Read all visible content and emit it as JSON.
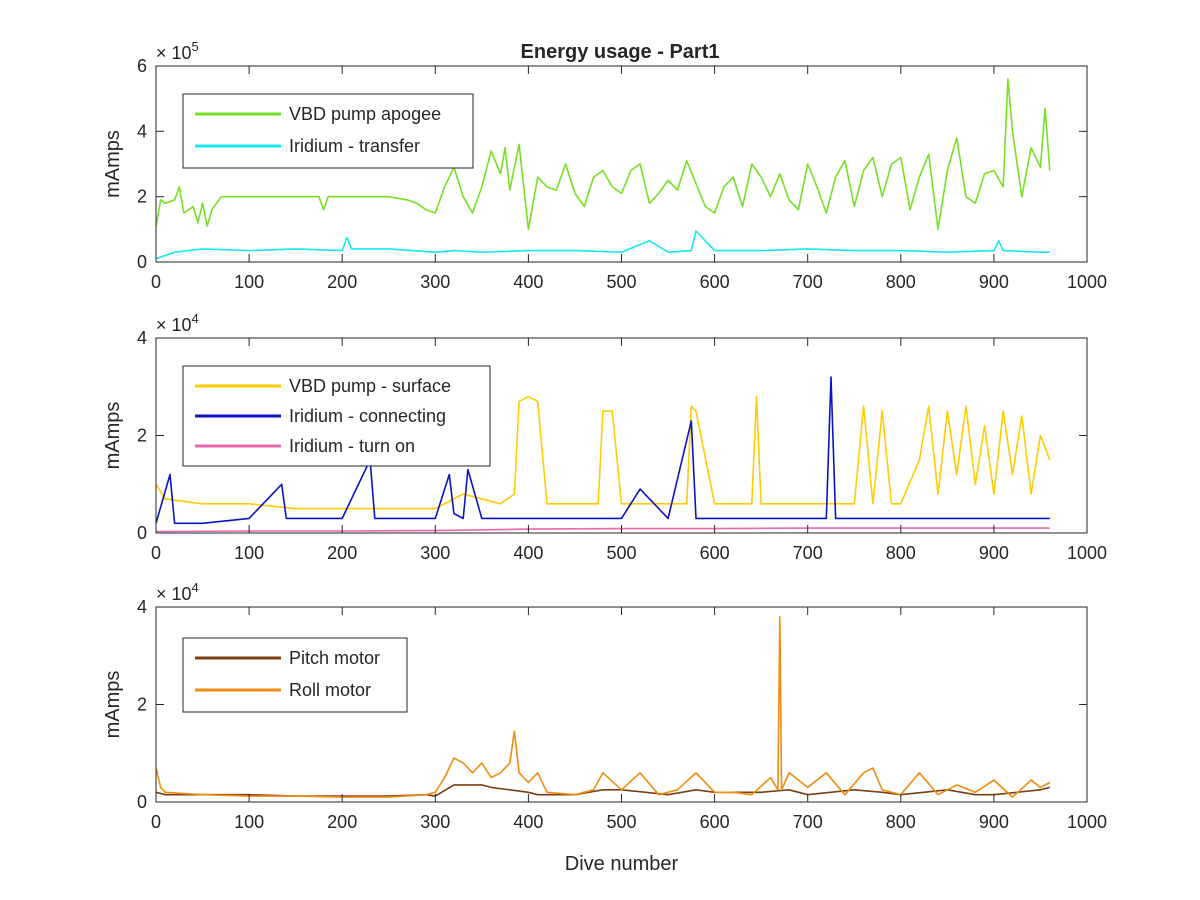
{
  "figure": {
    "title": "Energy usage - Part1"
  },
  "chart_data": [
    {
      "type": "line",
      "title": "Energy usage - Part1",
      "xlabel": "",
      "ylabel": "mAmps",
      "xlim": [
        0,
        1000
      ],
      "ylim": [
        0,
        600000
      ],
      "xticks": [
        0,
        100,
        200,
        300,
        400,
        500,
        600,
        700,
        800,
        900,
        1000
      ],
      "yticks": [
        0,
        200000,
        400000,
        600000
      ],
      "ytick_labels": [
        "0",
        "2",
        "4",
        "6"
      ],
      "y_exponent": "× 10^5",
      "y_exponent_base": "× 10",
      "y_exponent_power": "5",
      "legend_position": "top-left",
      "grid": false,
      "series": [
        {
          "name": "VBD pump apogee",
          "color": "#77e024",
          "x": [
            0,
            5,
            10,
            20,
            25,
            30,
            40,
            45,
            50,
            55,
            60,
            70,
            80,
            100,
            150,
            175,
            180,
            185,
            200,
            250,
            270,
            280,
            290,
            300,
            310,
            320,
            330,
            340,
            350,
            360,
            370,
            375,
            380,
            390,
            400,
            410,
            420,
            430,
            440,
            450,
            460,
            470,
            480,
            490,
            500,
            510,
            520,
            530,
            540,
            550,
            560,
            570,
            580,
            590,
            600,
            610,
            620,
            630,
            640,
            650,
            660,
            670,
            680,
            690,
            700,
            710,
            720,
            730,
            740,
            750,
            760,
            770,
            780,
            790,
            800,
            810,
            820,
            830,
            840,
            850,
            860,
            870,
            880,
            890,
            900,
            910,
            915,
            920,
            930,
            940,
            950,
            955,
            960
          ],
          "y": [
            110000,
            190000,
            180000,
            190000,
            230000,
            150000,
            170000,
            120000,
            180000,
            110000,
            160000,
            200000,
            200000,
            200000,
            200000,
            200000,
            160000,
            200000,
            200000,
            200000,
            190000,
            180000,
            160000,
            150000,
            230000,
            290000,
            200000,
            150000,
            230000,
            340000,
            270000,
            350000,
            220000,
            360000,
            100000,
            260000,
            230000,
            220000,
            300000,
            210000,
            170000,
            260000,
            280000,
            230000,
            210000,
            280000,
            300000,
            180000,
            210000,
            250000,
            220000,
            310000,
            240000,
            170000,
            150000,
            230000,
            260000,
            170000,
            300000,
            260000,
            200000,
            270000,
            190000,
            160000,
            300000,
            230000,
            150000,
            260000,
            310000,
            170000,
            280000,
            320000,
            200000,
            300000,
            320000,
            160000,
            260000,
            330000,
            100000,
            280000,
            380000,
            200000,
            180000,
            270000,
            280000,
            230000,
            560000,
            400000,
            200000,
            350000,
            290000,
            470000,
            280000
          ]
        },
        {
          "name": "Iridium - transfer",
          "color": "#18e8f0",
          "x": [
            0,
            20,
            50,
            100,
            150,
            200,
            205,
            210,
            250,
            300,
            320,
            350,
            400,
            450,
            500,
            530,
            550,
            575,
            580,
            600,
            650,
            700,
            750,
            800,
            850,
            900,
            905,
            910,
            950,
            960
          ],
          "y": [
            10000,
            30000,
            40000,
            35000,
            40000,
            35000,
            75000,
            40000,
            40000,
            30000,
            35000,
            30000,
            35000,
            35000,
            30000,
            65000,
            30000,
            35000,
            95000,
            35000,
            35000,
            40000,
            35000,
            35000,
            30000,
            35000,
            65000,
            35000,
            30000,
            30000
          ]
        }
      ]
    },
    {
      "type": "line",
      "title": "",
      "xlabel": "",
      "ylabel": "mAmps",
      "xlim": [
        0,
        1000
      ],
      "ylim": [
        0,
        40000
      ],
      "xticks": [
        0,
        100,
        200,
        300,
        400,
        500,
        600,
        700,
        800,
        900,
        1000
      ],
      "yticks": [
        0,
        20000,
        40000
      ],
      "ytick_labels": [
        "0",
        "2",
        "4"
      ],
      "y_exponent": "× 10^4",
      "y_exponent_base": "× 10",
      "y_exponent_power": "4",
      "legend_position": "top-left",
      "grid": false,
      "series": [
        {
          "name": "VBD pump - surface",
          "color": "#ffcc00",
          "x": [
            0,
            10,
            50,
            100,
            150,
            200,
            250,
            300,
            330,
            370,
            385,
            390,
            400,
            410,
            420,
            450,
            475,
            480,
            490,
            500,
            550,
            570,
            575,
            580,
            600,
            630,
            640,
            645,
            650,
            700,
            750,
            760,
            770,
            780,
            790,
            800,
            820,
            830,
            840,
            850,
            860,
            870,
            880,
            890,
            900,
            910,
            920,
            930,
            940,
            950,
            960
          ],
          "y": [
            10000,
            7000,
            6000,
            6000,
            5000,
            5000,
            5000,
            5000,
            8000,
            6000,
            8000,
            27000,
            28000,
            27000,
            6000,
            6000,
            6000,
            25000,
            25000,
            6000,
            6000,
            6000,
            26000,
            25000,
            6000,
            6000,
            6000,
            28000,
            6000,
            6000,
            6000,
            26000,
            6000,
            25000,
            6000,
            6000,
            15000,
            26000,
            8000,
            25000,
            12000,
            26000,
            10000,
            22000,
            8000,
            25000,
            12000,
            24000,
            8000,
            20000,
            15000
          ]
        },
        {
          "name": "Iridium - connecting",
          "color": "#0a14c0",
          "x": [
            0,
            15,
            20,
            50,
            100,
            135,
            140,
            200,
            230,
            235,
            250,
            300,
            315,
            320,
            330,
            335,
            350,
            400,
            450,
            500,
            520,
            550,
            575,
            580,
            600,
            650,
            700,
            720,
            725,
            730,
            750,
            800,
            850,
            900,
            960
          ],
          "y": [
            2000,
            12000,
            2000,
            2000,
            3000,
            10000,
            3000,
            3000,
            15000,
            3000,
            3000,
            3000,
            12000,
            4000,
            3000,
            13000,
            3000,
            3000,
            3000,
            3000,
            9000,
            3000,
            23000,
            3000,
            3000,
            3000,
            3000,
            3000,
            32000,
            3000,
            3000,
            3000,
            3000,
            3000,
            3000
          ]
        },
        {
          "name": "Iridium - turn on",
          "color": "#e868b0",
          "x": [
            0,
            100,
            200,
            300,
            400,
            500,
            600,
            700,
            800,
            900,
            960
          ],
          "y": [
            300,
            400,
            400,
            500,
            800,
            900,
            900,
            1000,
            1000,
            1000,
            1000
          ]
        }
      ]
    },
    {
      "type": "line",
      "title": "",
      "xlabel": "Dive number",
      "ylabel": "mAmps",
      "xlim": [
        0,
        1000
      ],
      "ylim": [
        0,
        40000
      ],
      "xticks": [
        0,
        100,
        200,
        300,
        400,
        500,
        600,
        700,
        800,
        900,
        1000
      ],
      "yticks": [
        0,
        20000,
        40000
      ],
      "ytick_labels": [
        "0",
        "2",
        "4"
      ],
      "y_exponent": "× 10^4",
      "y_exponent_base": "× 10",
      "y_exponent_power": "4",
      "legend_position": "top-left",
      "grid": false,
      "series": [
        {
          "name": "Pitch motor",
          "color": "#7a3f12",
          "x": [
            0,
            10,
            50,
            100,
            150,
            200,
            250,
            290,
            300,
            320,
            350,
            360,
            400,
            410,
            450,
            480,
            500,
            550,
            580,
            600,
            650,
            680,
            700,
            750,
            780,
            800,
            850,
            880,
            900,
            950,
            960
          ],
          "y": [
            2000,
            1500,
            1500,
            1500,
            1200,
            1200,
            1200,
            1500,
            1200,
            3500,
            3500,
            3000,
            2000,
            1500,
            1500,
            2500,
            2500,
            1500,
            2500,
            2000,
            2000,
            2500,
            1500,
            2500,
            2000,
            1500,
            2500,
            1500,
            1500,
            2500,
            3000
          ]
        },
        {
          "name": "Roll motor",
          "color": "#f08c10",
          "x": [
            0,
            5,
            10,
            50,
            100,
            150,
            200,
            250,
            290,
            300,
            310,
            320,
            330,
            340,
            350,
            360,
            370,
            380,
            385,
            390,
            400,
            410,
            420,
            450,
            470,
            480,
            500,
            520,
            540,
            560,
            580,
            600,
            620,
            640,
            660,
            668,
            670,
            672,
            680,
            700,
            720,
            740,
            760,
            770,
            780,
            800,
            820,
            840,
            860,
            880,
            900,
            920,
            940,
            950,
            960
          ],
          "y": [
            7000,
            3000,
            2000,
            1500,
            1200,
            1200,
            1000,
            1000,
            1500,
            2000,
            5000,
            9000,
            8000,
            6000,
            8000,
            5000,
            6000,
            8000,
            14500,
            6000,
            4000,
            6000,
            2000,
            1500,
            2500,
            6000,
            2500,
            6000,
            1500,
            2500,
            6000,
            2000,
            2000,
            1500,
            5000,
            2500,
            38000,
            2500,
            6000,
            3000,
            6000,
            1500,
            6000,
            7000,
            2500,
            1500,
            6000,
            1500,
            3500,
            2000,
            4500,
            1000,
            4500,
            3000,
            4000
          ]
        }
      ]
    }
  ]
}
